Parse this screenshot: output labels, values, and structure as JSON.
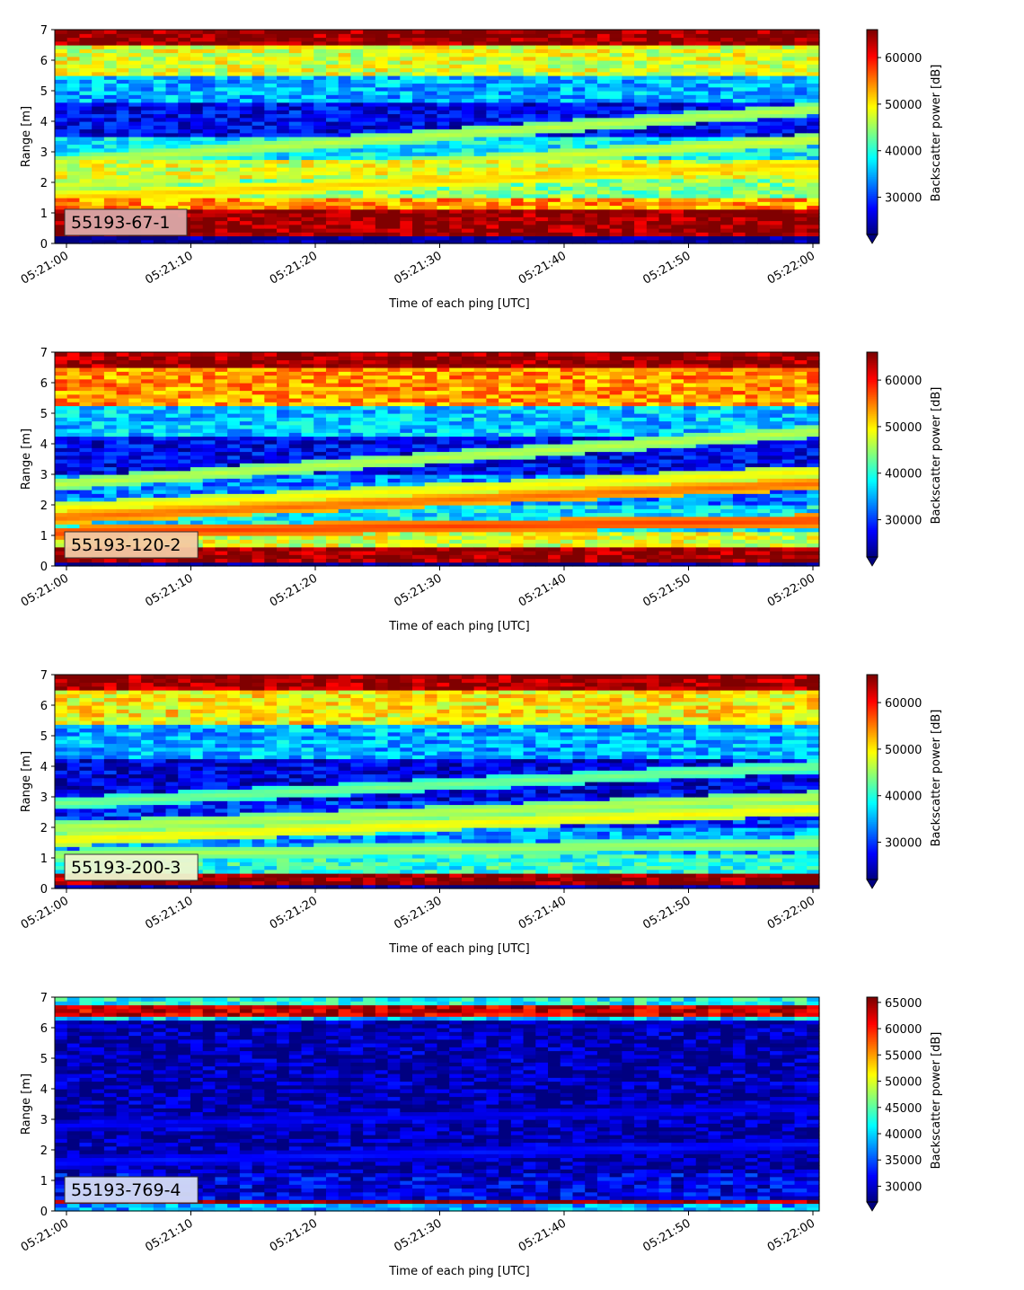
{
  "chart_data": [
    {
      "type": "heatmap",
      "label": "55193-67-1",
      "label_color": "#dba8a8",
      "xlabel": "Time of each ping [UTC]",
      "ylabel": "Range [m]",
      "colorbar_label": "Backscatter power [dB]",
      "x_ticks": [
        "05:21:00",
        "05:21:10",
        "05:21:20",
        "05:21:30",
        "05:21:40",
        "05:21:50",
        "05:22:00"
      ],
      "y_ticks": [
        0,
        1,
        2,
        3,
        4,
        5,
        6,
        7
      ],
      "ylim": [
        0,
        7
      ],
      "cbar_ticks": [
        30000,
        40000,
        50000,
        60000
      ],
      "vmin": 22000,
      "vmax": 66000,
      "colormap": "jet",
      "bands": [
        {
          "range": [
            0.25,
            1.1
          ],
          "value": 65500
        },
        {
          "range": [
            1.1,
            1.5
          ],
          "value": 54000
        },
        {
          "range": [
            1.5,
            2.1
          ],
          "value": 44000
        },
        {
          "range": [
            2.1,
            2.8
          ],
          "value": 48000
        },
        {
          "range": [
            2.8,
            3.5
          ],
          "value": 38000
        },
        {
          "range": [
            3.5,
            4.6
          ],
          "value": 27000
        },
        {
          "range": [
            4.6,
            5.5
          ],
          "value": 35000
        },
        {
          "range": [
            5.5,
            6.5
          ],
          "value": 48000
        },
        {
          "range": [
            6.5,
            7.0
          ],
          "value": 65500
        }
      ],
      "tracks": [
        {
          "start": 2.7,
          "end": 4.4,
          "value": 47000
        },
        {
          "start": 1.9,
          "end": 3.4,
          "value": 48000
        },
        {
          "start": 1.5,
          "end": 2.6,
          "value": 52000
        }
      ]
    },
    {
      "type": "heatmap",
      "label": "55193-120-2",
      "label_color": "#f3c9a4",
      "xlabel": "Time of each ping [UTC]",
      "ylabel": "Range [m]",
      "colorbar_label": "Backscatter power [dB]",
      "x_ticks": [
        "05:21:00",
        "05:21:10",
        "05:21:20",
        "05:21:30",
        "05:21:40",
        "05:21:50",
        "05:22:00"
      ],
      "y_ticks": [
        0,
        1,
        2,
        3,
        4,
        5,
        6,
        7
      ],
      "ylim": [
        0,
        7
      ],
      "cbar_ticks": [
        30000,
        40000,
        50000,
        60000
      ],
      "vmin": 22000,
      "vmax": 66000,
      "colormap": "jet",
      "bands": [
        {
          "range": [
            0.1,
            0.6
          ],
          "value": 65500
        },
        {
          "range": [
            0.6,
            1.1
          ],
          "value": 48000
        },
        {
          "range": [
            1.1,
            2.0
          ],
          "value": 38000
        },
        {
          "range": [
            2.0,
            3.0
          ],
          "value": 33000
        },
        {
          "range": [
            3.0,
            4.3
          ],
          "value": 27000
        },
        {
          "range": [
            4.3,
            5.3
          ],
          "value": 36000
        },
        {
          "range": [
            5.3,
            6.5
          ],
          "value": 54000
        },
        {
          "range": [
            6.5,
            7.0
          ],
          "value": 65000
        }
      ],
      "tracks": [
        {
          "start": 2.7,
          "end": 4.4,
          "value": 47000
        },
        {
          "start": 1.9,
          "end": 3.1,
          "value": 50000
        },
        {
          "start": 1.6,
          "end": 2.7,
          "value": 56000
        },
        {
          "start": 1.1,
          "end": 1.5,
          "value": 58000
        }
      ]
    },
    {
      "type": "heatmap",
      "label": "55193-200-3",
      "label_color": "#eef5cf",
      "xlabel": "Time of each ping [UTC]",
      "ylabel": "Range [m]",
      "colorbar_label": "Backscatter power [dB]",
      "x_ticks": [
        "05:21:00",
        "05:21:10",
        "05:21:20",
        "05:21:30",
        "05:21:40",
        "05:21:50",
        "05:22:00"
      ],
      "y_ticks": [
        0,
        1,
        2,
        3,
        4,
        5,
        6,
        7
      ],
      "ylim": [
        0,
        7
      ],
      "cbar_ticks": [
        30000,
        40000,
        50000,
        60000
      ],
      "vmin": 22000,
      "vmax": 66000,
      "colormap": "jet",
      "bands": [
        {
          "range": [
            0.1,
            0.5
          ],
          "value": 65500
        },
        {
          "range": [
            0.5,
            1.1
          ],
          "value": 40000
        },
        {
          "range": [
            1.1,
            2.0
          ],
          "value": 34000
        },
        {
          "range": [
            2.0,
            2.9
          ],
          "value": 29000
        },
        {
          "range": [
            2.9,
            4.3
          ],
          "value": 26000
        },
        {
          "range": [
            4.3,
            5.4
          ],
          "value": 35000
        },
        {
          "range": [
            5.4,
            6.5
          ],
          "value": 50000
        },
        {
          "range": [
            6.5,
            7.0
          ],
          "value": 65000
        }
      ],
      "tracks": [
        {
          "start": 2.8,
          "end": 4.0,
          "value": 44000
        },
        {
          "start": 2.0,
          "end": 3.0,
          "value": 47000
        },
        {
          "start": 1.6,
          "end": 2.6,
          "value": 50000
        },
        {
          "start": 1.1,
          "end": 1.5,
          "value": 46000
        }
      ]
    },
    {
      "type": "heatmap",
      "label": "55193-769-4",
      "label_color": "#d5dcf5",
      "xlabel": "Time of each ping [UTC]",
      "ylabel": "Range [m]",
      "colorbar_label": "Backscatter power [dB]",
      "x_ticks": [
        "05:21:00",
        "05:21:10",
        "05:21:20",
        "05:21:30",
        "05:21:40",
        "05:21:50",
        "05:22:00"
      ],
      "y_ticks": [
        0,
        1,
        2,
        3,
        4,
        5,
        6,
        7
      ],
      "ylim": [
        0,
        7
      ],
      "cbar_ticks": [
        30000,
        35000,
        40000,
        45000,
        50000,
        55000,
        60000,
        65000
      ],
      "vmin": 27000,
      "vmax": 66000,
      "colormap": "jet",
      "bands": [
        {
          "range": [
            0.0,
            0.2
          ],
          "value": 38000
        },
        {
          "range": [
            0.2,
            0.35
          ],
          "value": 65500
        },
        {
          "range": [
            0.35,
            1.2
          ],
          "value": 31000
        },
        {
          "range": [
            1.2,
            6.2
          ],
          "value": 28500
        },
        {
          "range": [
            6.2,
            6.4
          ],
          "value": 40000
        },
        {
          "range": [
            6.4,
            6.7
          ],
          "value": 63000
        },
        {
          "range": [
            6.7,
            7.0
          ],
          "value": 42000
        }
      ],
      "tracks": [
        {
          "start": 1.6,
          "end": 2.2,
          "value": 33000
        },
        {
          "start": 2.8,
          "end": 3.4,
          "value": 32000
        }
      ]
    }
  ]
}
